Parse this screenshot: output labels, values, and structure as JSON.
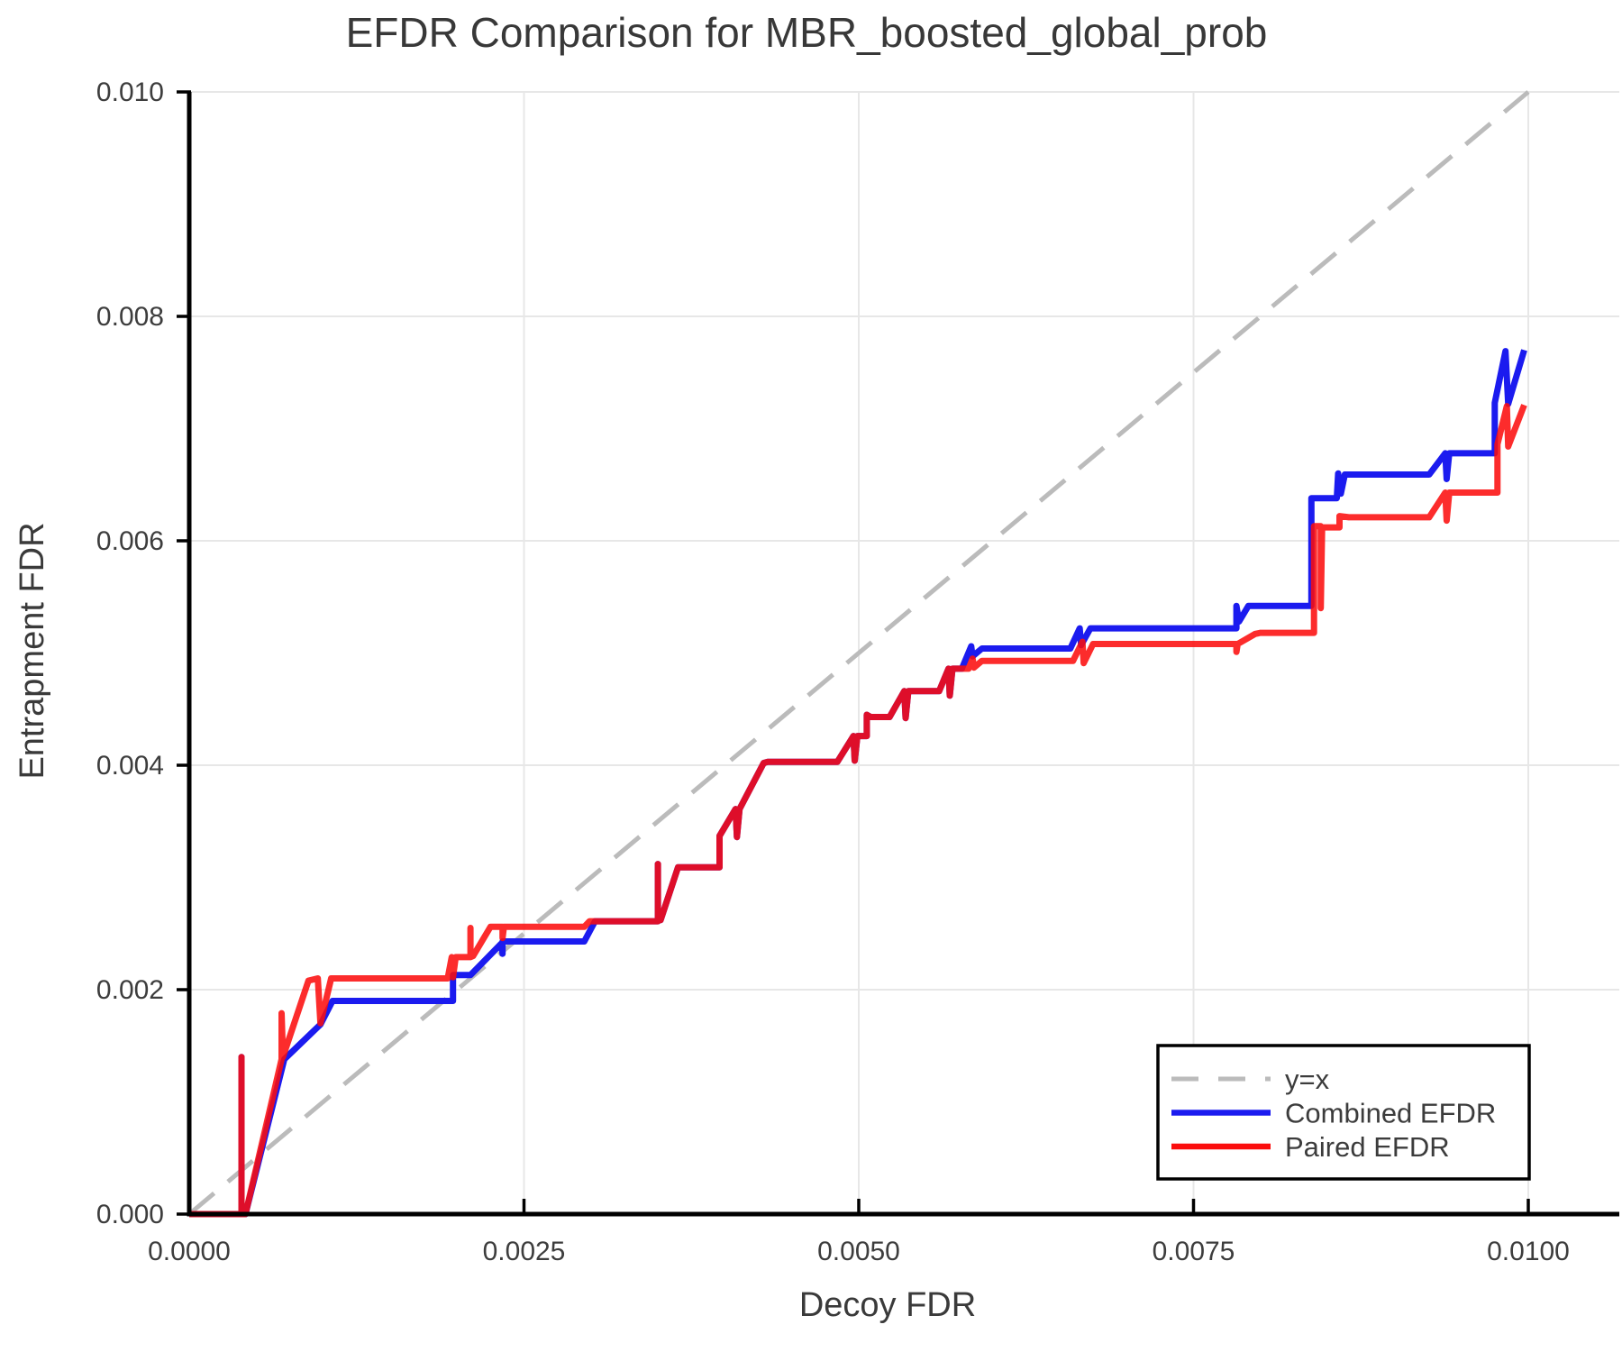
{
  "page": {
    "background": "#ffffff"
  },
  "chart_data": {
    "type": "line",
    "title": "EFDR Comparison for MBR_boosted_global_prob",
    "xlabel": "Decoy FDR",
    "ylabel": "Entrapment FDR",
    "xlim": [
      0.0,
      0.01
    ],
    "ylim": [
      0.0,
      0.01
    ],
    "grid": true,
    "legend_position": "bottom-right",
    "xticks": [
      {
        "v": 0.0,
        "label": "0.0000"
      },
      {
        "v": 0.0025,
        "label": "0.0025"
      },
      {
        "v": 0.005,
        "label": "0.0050"
      },
      {
        "v": 0.0075,
        "label": "0.0075"
      },
      {
        "v": 0.01,
        "label": "0.0100"
      }
    ],
    "yticks": [
      {
        "v": 0.0,
        "label": "0.000"
      },
      {
        "v": 0.002,
        "label": "0.002"
      },
      {
        "v": 0.004,
        "label": "0.004"
      },
      {
        "v": 0.006,
        "label": "0.006"
      },
      {
        "v": 0.008,
        "label": "0.008"
      },
      {
        "v": 0.01,
        "label": "0.010"
      }
    ],
    "colors": {
      "grid": "#e7e7e7",
      "spine": "#000000",
      "tick_text": "#3d3d3d",
      "reference": "#bbbbbb",
      "combined": "#1b1bef",
      "paired": "#fb0d0d"
    },
    "series": [
      {
        "name": "y=x",
        "role": "reference",
        "style": "dashed",
        "color": "#bbbbbb",
        "width": 5,
        "opacity": 1,
        "points": [
          [
            0.0,
            0.0
          ],
          [
            0.01,
            0.01
          ]
        ]
      },
      {
        "name": "Combined EFDR",
        "role": "data",
        "style": "solid",
        "color": "#1b1bef",
        "width": 7,
        "opacity": 1,
        "points": [
          [
            0.0,
            0.0
          ],
          [
            0.00039,
            0.0
          ],
          [
            0.00039,
            0.0014
          ],
          [
            0.00039,
            0.0
          ],
          [
            0.00042,
            0.0
          ],
          [
            0.00071,
            0.00138
          ],
          [
            0.00098,
            0.00169
          ],
          [
            0.00107,
            0.0019
          ],
          [
            0.00193,
            0.0019
          ],
          [
            0.00197,
            0.0019
          ],
          [
            0.00197,
            0.00213
          ],
          [
            0.0021,
            0.00213
          ],
          [
            0.00233,
            0.00241
          ],
          [
            0.00234,
            0.00232
          ],
          [
            0.00234,
            0.00243
          ],
          [
            0.00295,
            0.00243
          ],
          [
            0.00303,
            0.00261
          ],
          [
            0.0035,
            0.00261
          ],
          [
            0.0035,
            0.00312
          ],
          [
            0.0035,
            0.00262
          ],
          [
            0.00352,
            0.00262
          ],
          [
            0.00365,
            0.00309
          ],
          [
            0.00396,
            0.00309
          ],
          [
            0.00396,
            0.00337
          ],
          [
            0.00408,
            0.00361
          ],
          [
            0.00409,
            0.00336
          ],
          [
            0.00411,
            0.00361
          ],
          [
            0.00429,
            0.00402
          ],
          [
            0.00432,
            0.00403
          ],
          [
            0.00484,
            0.00403
          ],
          [
            0.00496,
            0.00426
          ],
          [
            0.00497,
            0.00404
          ],
          [
            0.00499,
            0.00426
          ],
          [
            0.00506,
            0.00426
          ],
          [
            0.00506,
            0.00445
          ],
          [
            0.00509,
            0.00443
          ],
          [
            0.00523,
            0.00443
          ],
          [
            0.00534,
            0.00466
          ],
          [
            0.00535,
            0.00442
          ],
          [
            0.00537,
            0.00466
          ],
          [
            0.0056,
            0.00466
          ],
          [
            0.00567,
            0.00486
          ],
          [
            0.00568,
            0.00462
          ],
          [
            0.0057,
            0.00486
          ],
          [
            0.00577,
            0.00486
          ],
          [
            0.00584,
            0.00506
          ],
          [
            0.00585,
            0.00497
          ],
          [
            0.00592,
            0.00504
          ],
          [
            0.00658,
            0.00504
          ],
          [
            0.00665,
            0.00522
          ],
          [
            0.00666,
            0.00507
          ],
          [
            0.00673,
            0.00522
          ],
          [
            0.00782,
            0.00522
          ],
          [
            0.00782,
            0.00542
          ],
          [
            0.00784,
            0.00528
          ],
          [
            0.00791,
            0.00542
          ],
          [
            0.00838,
            0.00542
          ],
          [
            0.00838,
            0.00638
          ],
          [
            0.00857,
            0.00638
          ],
          [
            0.00858,
            0.0066
          ],
          [
            0.0086,
            0.00642
          ],
          [
            0.00863,
            0.00659
          ],
          [
            0.00926,
            0.00659
          ],
          [
            0.00938,
            0.00678
          ],
          [
            0.00939,
            0.00655
          ],
          [
            0.00941,
            0.00678
          ],
          [
            0.00975,
            0.00678
          ],
          [
            0.00975,
            0.00723
          ],
          [
            0.00983,
            0.00769
          ],
          [
            0.00985,
            0.00722
          ],
          [
            0.00997,
            0.0077
          ]
        ]
      },
      {
        "name": "Paired EFDR",
        "role": "data",
        "style": "solid",
        "color": "#fb0d0d",
        "width": 7,
        "opacity": 0.87,
        "points": [
          [
            0.0,
            0.0
          ],
          [
            0.00039,
            0.0
          ],
          [
            0.00039,
            0.0014
          ],
          [
            0.00039,
            0.0
          ],
          [
            0.00042,
            0.0
          ],
          [
            0.00069,
            0.00138
          ],
          [
            0.00069,
            0.00179
          ],
          [
            0.0007,
            0.0014
          ],
          [
            0.00089,
            0.00208
          ],
          [
            0.00096,
            0.0021
          ],
          [
            0.00098,
            0.0017
          ],
          [
            0.00106,
            0.0021
          ],
          [
            0.00193,
            0.0021
          ],
          [
            0.00196,
            0.00229
          ],
          [
            0.00197,
            0.00211
          ],
          [
            0.00199,
            0.00229
          ],
          [
            0.0021,
            0.00229
          ],
          [
            0.0021,
            0.00255
          ],
          [
            0.0021,
            0.00229
          ],
          [
            0.00212,
            0.0023
          ],
          [
            0.00225,
            0.00256
          ],
          [
            0.00234,
            0.00256
          ],
          [
            0.00234,
            0.00246
          ],
          [
            0.00235,
            0.00256
          ],
          [
            0.00295,
            0.00256
          ],
          [
            0.00299,
            0.00261
          ],
          [
            0.0035,
            0.00261
          ],
          [
            0.0035,
            0.00312
          ],
          [
            0.0035,
            0.00262
          ],
          [
            0.00352,
            0.00262
          ],
          [
            0.00365,
            0.00309
          ],
          [
            0.00396,
            0.00309
          ],
          [
            0.00396,
            0.00337
          ],
          [
            0.00408,
            0.00361
          ],
          [
            0.00409,
            0.00336
          ],
          [
            0.00411,
            0.00361
          ],
          [
            0.00429,
            0.00402
          ],
          [
            0.00432,
            0.00403
          ],
          [
            0.00484,
            0.00403
          ],
          [
            0.00496,
            0.00426
          ],
          [
            0.00497,
            0.00404
          ],
          [
            0.00499,
            0.00426
          ],
          [
            0.00506,
            0.00426
          ],
          [
            0.00506,
            0.00445
          ],
          [
            0.00509,
            0.00443
          ],
          [
            0.00523,
            0.00443
          ],
          [
            0.00534,
            0.00466
          ],
          [
            0.00535,
            0.00442
          ],
          [
            0.00537,
            0.00466
          ],
          [
            0.0056,
            0.00466
          ],
          [
            0.00567,
            0.00486
          ],
          [
            0.00568,
            0.00462
          ],
          [
            0.0057,
            0.00486
          ],
          [
            0.00582,
            0.00486
          ],
          [
            0.00585,
            0.00495
          ],
          [
            0.00586,
            0.00487
          ],
          [
            0.00592,
            0.00493
          ],
          [
            0.0066,
            0.00493
          ],
          [
            0.00667,
            0.0051
          ],
          [
            0.00668,
            0.00491
          ],
          [
            0.00675,
            0.00508
          ],
          [
            0.00782,
            0.00508
          ],
          [
            0.00782,
            0.00501
          ],
          [
            0.00783,
            0.00508
          ],
          [
            0.00796,
            0.00517
          ],
          [
            0.008,
            0.00518
          ],
          [
            0.0084,
            0.00518
          ],
          [
            0.0084,
            0.00613
          ],
          [
            0.00845,
            0.00613
          ],
          [
            0.00845,
            0.0054
          ],
          [
            0.00846,
            0.00612
          ],
          [
            0.00859,
            0.00612
          ],
          [
            0.00859,
            0.00622
          ],
          [
            0.00866,
            0.00621
          ],
          [
            0.00926,
            0.00621
          ],
          [
            0.00938,
            0.00643
          ],
          [
            0.00939,
            0.00618
          ],
          [
            0.00941,
            0.00643
          ],
          [
            0.00977,
            0.00643
          ],
          [
            0.00977,
            0.00686
          ],
          [
            0.00984,
            0.0072
          ],
          [
            0.00985,
            0.00684
          ],
          [
            0.00997,
            0.00721
          ]
        ]
      }
    ]
  }
}
